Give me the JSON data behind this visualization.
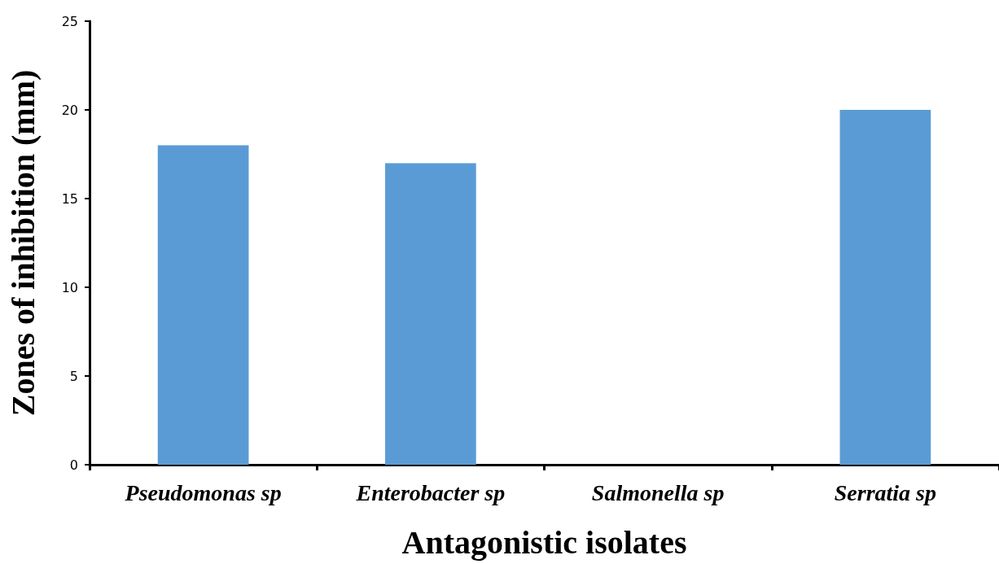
{
  "chart_data": {
    "type": "bar",
    "xlabel": "Antagonistic isolates",
    "ylabel": "Zones of inhibition (mm)",
    "categories": [
      "Pseudomonas sp",
      "Enterobacter sp",
      "Salmonella sp",
      "Serratia sp"
    ],
    "values": [
      18,
      17,
      0,
      20
    ],
    "color": "#5b9bd5",
    "ylim": [
      0,
      25
    ],
    "yticks": [
      0,
      5,
      10,
      15,
      20,
      25
    ],
    "grid": false
  }
}
